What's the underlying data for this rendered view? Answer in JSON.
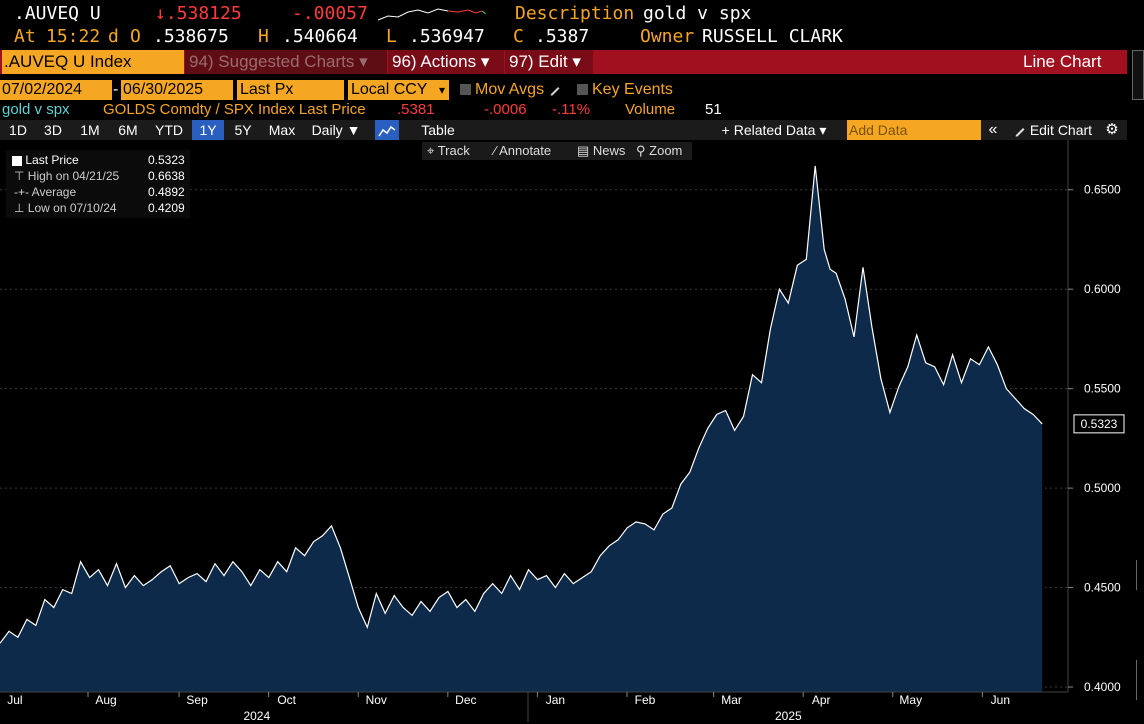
{
  "header": {
    "ticker": ".AUVEQ U",
    "last_arrow": "↓",
    "last_value": ".538125",
    "change": "-.00057",
    "desc_label": "Description",
    "desc_value": "gold v spx",
    "at_label": "At",
    "time": "15:22",
    "day_flag": "d",
    "open_label": "O",
    "open_value": ".538675",
    "high_label": "H",
    "high_value": ".540664",
    "low_label": "L",
    "low_value": ".536947",
    "close_label": "C",
    "close_value": ".5387",
    "owner_label": "Owner",
    "owner_value": "RUSSELL CLARK"
  },
  "toolbar": {
    "security": ".AUVEQ U Index",
    "suggested": "94) Suggested Charts",
    "actions": "96) Actions",
    "edit": "97) Edit",
    "chart_type": "Line Chart",
    "dropdown_glyph": "▾"
  },
  "range": {
    "start": "07/02/2024",
    "sep": "-",
    "end": "06/30/2025",
    "field": "Last Px",
    "currency": "Local CCY",
    "mov_avgs": "Mov Avgs",
    "key_events": "Key Events"
  },
  "series_line": {
    "name": "gold v spx",
    "formula": "GOLDS Comdty / SPX Index Last Price",
    "last": ".5381",
    "change": "-.0006",
    "pct": "-.11%",
    "volume_label": "Volume",
    "volume": "51"
  },
  "periods": [
    "1D",
    "3D",
    "1M",
    "6M",
    "YTD",
    "1Y",
    "5Y",
    "Max"
  ],
  "selected_period": "1Y",
  "period_controls": {
    "frequency": "Daily ▼",
    "table": "Table",
    "related": "+ Related Data ▾",
    "add_data_placeholder": "Add Data",
    "collapse": "«",
    "edit_chart": "Edit Chart",
    "settings_glyph": "⚙"
  },
  "tools": {
    "track": "Track",
    "annotate": "Annotate",
    "news": "News",
    "zoom": "Zoom"
  },
  "legend": {
    "last_label": "Last Price",
    "last_value": "0.5323",
    "high_label": "High on 04/21/25",
    "high_value": "0.6638",
    "avg_label": "Average",
    "avg_value": "0.4892",
    "low_label": "Low on 07/10/24",
    "low_value": "0.4209"
  },
  "colors": {
    "accent": "#f5a623",
    "toolbar_red": "#a0101e",
    "area_fill": "#0d2a4a",
    "line": "#ffffff",
    "down": "#ff3b3b"
  },
  "chart_data": {
    "type": "area",
    "title": "gold v spx",
    "ylim": [
      0.3975,
      0.675
    ],
    "yticks": [
      0.4,
      0.45,
      0.5,
      0.55,
      0.6,
      0.65
    ],
    "ytick_labels": [
      "0.4000",
      "0.4500",
      "0.5000",
      "0.5500",
      "0.6000",
      "0.6500"
    ],
    "month_labels": [
      "Jul",
      "Aug",
      "Sep",
      "Oct",
      "Nov",
      "Dec",
      "Jan",
      "Feb",
      "Mar",
      "Apr",
      "May",
      "Jun"
    ],
    "month_positions": [
      0.5,
      3.55,
      6.6,
      9.6,
      12.6,
      15.6,
      18.6,
      21.6,
      24.5,
      27.5,
      30.5,
      33.5
    ],
    "year_labels": [
      "2024",
      "2025"
    ],
    "year_positions": [
      8.6,
      26.4
    ],
    "x_max": 36,
    "last_price_label": "0.5323",
    "series": [
      {
        "name": "Last Price",
        "x": [
          0,
          0.3,
          0.6,
          0.9,
          1.2,
          1.5,
          1.8,
          2.1,
          2.4,
          2.7,
          3.0,
          3.3,
          3.6,
          3.9,
          4.2,
          4.5,
          4.8,
          5.1,
          5.4,
          5.7,
          6.0,
          6.3,
          6.6,
          6.9,
          7.2,
          7.5,
          7.8,
          8.1,
          8.4,
          8.7,
          9.0,
          9.3,
          9.6,
          9.9,
          10.2,
          10.5,
          10.8,
          11.1,
          11.4,
          11.7,
          12.0,
          12.3,
          12.6,
          12.9,
          13.2,
          13.5,
          13.8,
          14.1,
          14.4,
          14.7,
          15.0,
          15.3,
          15.6,
          15.9,
          16.2,
          16.5,
          16.8,
          17.1,
          17.4,
          17.7,
          18.0,
          18.3,
          18.6,
          18.9,
          19.2,
          19.5,
          19.8,
          20.1,
          20.4,
          20.7,
          21.0,
          21.3,
          21.6,
          21.9,
          22.2,
          22.5,
          22.8,
          23.1,
          23.4,
          23.7,
          24.0,
          24.3,
          24.6,
          24.9,
          25.2,
          25.5,
          25.8,
          26.1,
          26.4,
          26.7,
          27.0,
          27.3,
          27.6,
          27.8,
          28.0,
          28.3,
          28.6,
          28.9,
          29.2,
          29.5,
          29.8,
          30.1,
          30.4,
          30.7,
          31.0,
          31.3,
          31.6,
          31.9,
          32.2,
          32.5,
          32.8,
          33.1,
          33.4,
          33.7,
          34.0,
          34.3,
          34.6,
          34.9
        ],
        "values": [
          0.422,
          0.428,
          0.425,
          0.434,
          0.431,
          0.444,
          0.44,
          0.449,
          0.447,
          0.463,
          0.455,
          0.459,
          0.451,
          0.462,
          0.45,
          0.456,
          0.451,
          0.454,
          0.458,
          0.461,
          0.452,
          0.455,
          0.457,
          0.453,
          0.462,
          0.456,
          0.463,
          0.458,
          0.451,
          0.459,
          0.455,
          0.463,
          0.458,
          0.47,
          0.466,
          0.473,
          0.476,
          0.481,
          0.47,
          0.455,
          0.44,
          0.43,
          0.447,
          0.437,
          0.446,
          0.44,
          0.436,
          0.443,
          0.438,
          0.445,
          0.448,
          0.44,
          0.444,
          0.438,
          0.447,
          0.452,
          0.447,
          0.456,
          0.449,
          0.459,
          0.454,
          0.456,
          0.45,
          0.457,
          0.452,
          0.455,
          0.458,
          0.466,
          0.471,
          0.474,
          0.48,
          0.483,
          0.482,
          0.479,
          0.487,
          0.49,
          0.502,
          0.508,
          0.52,
          0.53,
          0.537,
          0.539,
          0.529,
          0.536,
          0.557,
          0.553,
          0.58,
          0.6,
          0.593,
          0.612,
          0.615,
          0.662,
          0.62,
          0.61,
          0.608,
          0.595,
          0.576,
          0.611,
          0.581,
          0.555,
          0.538,
          0.551,
          0.561,
          0.577,
          0.563,
          0.561,
          0.552,
          0.567,
          0.553,
          0.565,
          0.562,
          0.571,
          0.562,
          0.55,
          0.545,
          0.54,
          0.537,
          0.5323
        ]
      }
    ]
  }
}
